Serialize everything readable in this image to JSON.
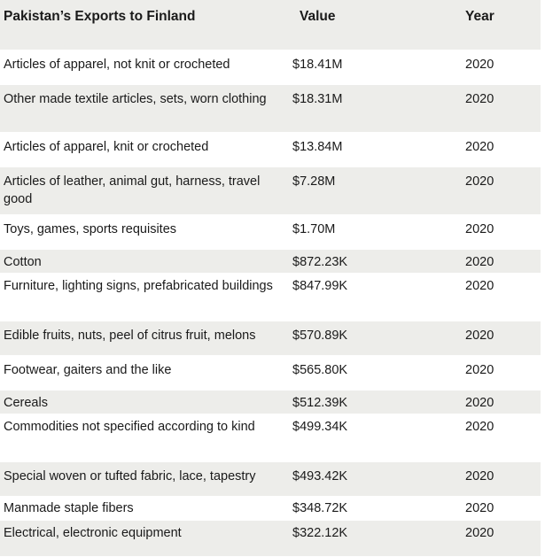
{
  "header": {
    "title": "Pakistan’s Exports to Finland",
    "value": "Value",
    "year": "Year"
  },
  "rows": [
    {
      "name": "Articles of apparel, not knit or crocheted",
      "value": "$18.41M",
      "year": "2020"
    },
    {
      "name": "Other made textile articles, sets, worn clothing",
      "value": "$18.31M",
      "year": "2020"
    },
    {
      "name": "Articles of apparel, knit or crocheted",
      "value": "$13.84M",
      "year": "2020"
    },
    {
      "name": "Articles of leather, animal gut, harness, travel good",
      "value": "$7.28M",
      "year": "2020"
    },
    {
      "name": "Toys, games, sports requisites",
      "value": "$1.70M",
      "year": "2020"
    },
    {
      "name": "Cotton",
      "value": "$872.23K",
      "year": "2020"
    },
    {
      "name": "Furniture, lighting signs, prefabricated buildings",
      "value": "$847.99K",
      "year": "2020"
    },
    {
      "name": "Edible fruits, nuts, peel of citrus fruit, melons",
      "value": "$570.89K",
      "year": "2020"
    },
    {
      "name": "Footwear, gaiters and the like",
      "value": "$565.80K",
      "year": "2020"
    },
    {
      "name": "Cereals",
      "value": "$512.39K",
      "year": "2020"
    },
    {
      "name": "Commodities not specified according to kind",
      "value": "$499.34K",
      "year": "2020"
    },
    {
      "name": "Special woven or tufted fabric, lace, tapestry",
      "value": "$493.42K",
      "year": "2020"
    },
    {
      "name": "Manmade staple fibers",
      "value": "$348.72K",
      "year": "2020"
    },
    {
      "name": "Electrical, electronic equipment",
      "value": "$322.12K",
      "year": "2020"
    }
  ]
}
